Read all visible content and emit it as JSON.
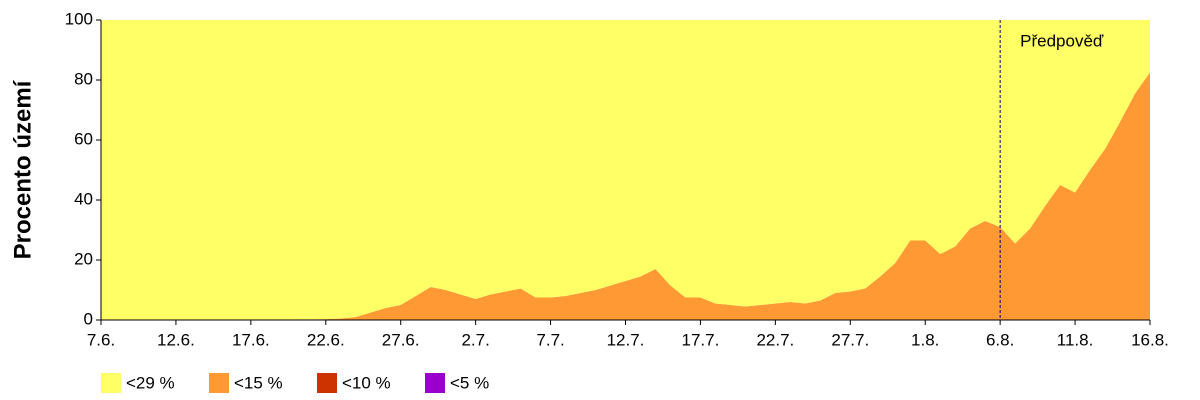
{
  "chart_data": {
    "type": "stacked_area",
    "y_label": "Procento území",
    "categories": [
      "7.6.",
      null,
      null,
      null,
      null,
      "12.6.",
      null,
      null,
      null,
      null,
      "17.6.",
      null,
      null,
      null,
      null,
      "22.6.",
      null,
      null,
      null,
      null,
      "27.6.",
      null,
      null,
      null,
      null,
      "2.7.",
      null,
      null,
      null,
      null,
      "7.7.",
      null,
      null,
      null,
      null,
      "12.7.",
      null,
      null,
      null,
      null,
      "17.7.",
      null,
      null,
      null,
      null,
      "22.7.",
      null,
      null,
      null,
      null,
      "27.7.",
      null,
      null,
      null,
      null,
      "1.8.",
      null,
      null,
      null,
      null,
      "6.8.",
      null,
      null,
      null,
      null,
      "11.8.",
      null,
      null,
      null,
      null,
      "16.8."
    ],
    "series": [
      {
        "name": "<29 %",
        "color": "#ffff66",
        "values": [
          100,
          100,
          100,
          100,
          100,
          100,
          100,
          100,
          100,
          100,
          100,
          100,
          100,
          99.8,
          99.8,
          99.7,
          99.5,
          99,
          97.5,
          96,
          95,
          92,
          89,
          90,
          91.5,
          93,
          91.5,
          90.5,
          89.5,
          92.5,
          92.5,
          92,
          91,
          90,
          88.5,
          87,
          85.5,
          83,
          88.5,
          92.5,
          92.5,
          94.5,
          95,
          95.5,
          95,
          94.5,
          94,
          94.5,
          93.5,
          91,
          90.5,
          89.5,
          85.5,
          81,
          73.5,
          73.5,
          78,
          75.5,
          69.5,
          67,
          69,
          74.5,
          69.5,
          62,
          55,
          57.5,
          50,
          43,
          34,
          24.5,
          17.5
        ]
      },
      {
        "name": "<15 %",
        "color": "#ff9933",
        "values": [
          0,
          0,
          0,
          0,
          0,
          0,
          0,
          0,
          0,
          0,
          0,
          0,
          0,
          0.2,
          0.2,
          0.3,
          0.5,
          1,
          2.5,
          4,
          5,
          8,
          11,
          10,
          8.5,
          7,
          8.5,
          9.5,
          10.5,
          7.5,
          7.5,
          8,
          9,
          10,
          11.5,
          13,
          14.5,
          17,
          11.5,
          7.5,
          7.5,
          5.5,
          5,
          4.5,
          5,
          5.5,
          6,
          5.5,
          6.5,
          9,
          9.5,
          10.5,
          14.5,
          19,
          26.5,
          26.5,
          22,
          24.5,
          30.5,
          33,
          31,
          25.5,
          30.5,
          38,
          45,
          42.5,
          50,
          57,
          66,
          75.5,
          82.5
        ]
      },
      {
        "name": "<10 %",
        "color": "#cc3300",
        "values": [
          0,
          0,
          0,
          0,
          0,
          0,
          0,
          0,
          0,
          0,
          0,
          0,
          0,
          0,
          0,
          0,
          0,
          0,
          0,
          0,
          0,
          0,
          0,
          0,
          0,
          0,
          0,
          0,
          0,
          0,
          0,
          0,
          0,
          0,
          0,
          0,
          0,
          0,
          0,
          0,
          0,
          0,
          0,
          0,
          0,
          0,
          0,
          0,
          0,
          0,
          0,
          0,
          0,
          0,
          0,
          0,
          0,
          0,
          0,
          0,
          0,
          0,
          0,
          0,
          0,
          0,
          0,
          0,
          0,
          0,
          0
        ]
      },
      {
        "name": "<5 %",
        "color": "#9900cc",
        "values": [
          0,
          0,
          0,
          0,
          0,
          0,
          0,
          0,
          0,
          0,
          0,
          0,
          0,
          0,
          0,
          0,
          0,
          0,
          0,
          0,
          0,
          0,
          0,
          0,
          0,
          0,
          0,
          0,
          0,
          0,
          0,
          0,
          0,
          0,
          0,
          0,
          0,
          0,
          0,
          0,
          0,
          0,
          0,
          0,
          0,
          0,
          0,
          0,
          0,
          0,
          0,
          0,
          0,
          0,
          0,
          0,
          0,
          0,
          0,
          0,
          0,
          0,
          0,
          0,
          0,
          0,
          0,
          0,
          0,
          0,
          0
        ]
      }
    ],
    "ylim": [
      0,
      100
    ],
    "yticks": [
      0,
      20,
      40,
      60,
      80,
      100
    ],
    "annotation": {
      "text": "Předpověď",
      "category_index": 60
    },
    "legend": "bottom-left"
  }
}
